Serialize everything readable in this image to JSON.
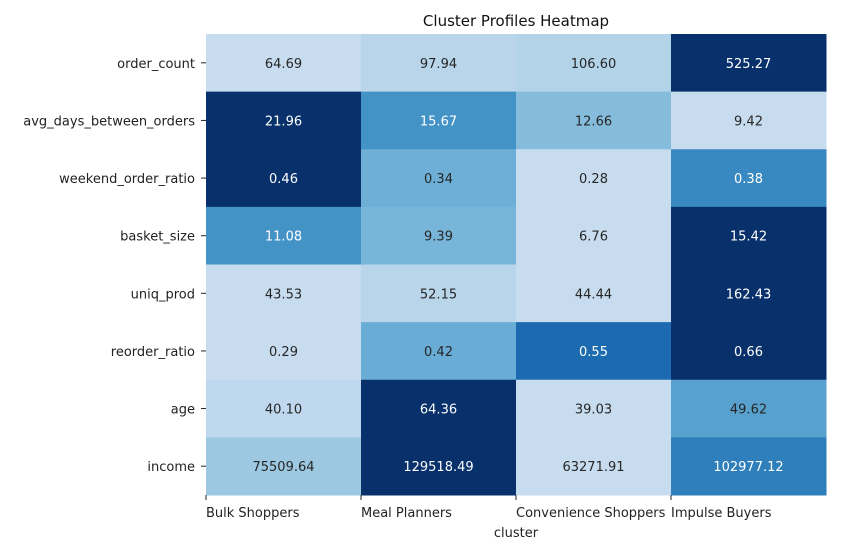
{
  "chart_data": {
    "type": "heatmap",
    "title": "Cluster Profiles Heatmap",
    "xlabel": "cluster",
    "ylabel": "",
    "x_categories": [
      "Bulk Shoppers",
      "Meal Planners",
      "Convenience Shoppers",
      "Impulse Buyers"
    ],
    "y_categories": [
      "order_count",
      "avg_days_between_orders",
      "weekend_order_ratio",
      "basket_size",
      "uniq_prod",
      "reorder_ratio",
      "age",
      "income"
    ],
    "values": [
      [
        "64.69",
        "97.94",
        "106.60",
        "525.27"
      ],
      [
        "21.96",
        "15.67",
        "12.66",
        "9.42"
      ],
      [
        "0.46",
        "0.34",
        "0.28",
        "0.38"
      ],
      [
        "11.08",
        "9.39",
        "6.76",
        "15.42"
      ],
      [
        "43.53",
        "52.15",
        "44.44",
        "162.43"
      ],
      [
        "0.29",
        "0.42",
        "0.55",
        "0.66"
      ],
      [
        "40.10",
        "64.36",
        "39.03",
        "49.62"
      ],
      [
        "75509.64",
        "129518.49",
        "63271.91",
        "102977.12"
      ]
    ],
    "colormap": "Blues",
    "color_normalization": "per-row",
    "colorbar": false,
    "grid": false
  }
}
